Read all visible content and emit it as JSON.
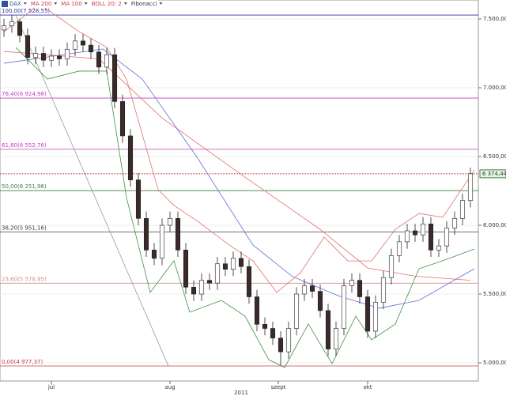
{
  "chart_data": {
    "type": "candlestick",
    "legend": [
      {
        "name": "DAX",
        "color": "#3050a0"
      },
      {
        "name": "MA 200",
        "color": "#d04040"
      },
      {
        "name": "MA 100",
        "color": "#d04040"
      },
      {
        "name": "BOLL 20; 2",
        "color": "#d04040"
      },
      {
        "name": "Fibonacci",
        "color": "#333333"
      }
    ],
    "x": [
      0,
      1,
      2,
      3,
      4,
      5,
      6,
      7,
      8,
      9,
      10,
      11,
      12,
      13,
      14,
      15,
      16,
      17,
      18,
      19,
      20,
      21,
      22,
      23,
      24,
      25,
      26,
      27,
      28,
      29,
      30,
      31,
      32,
      33,
      34,
      35,
      36,
      37,
      38,
      39,
      40,
      41,
      42,
      43,
      44,
      45,
      46,
      47,
      48,
      49,
      50,
      51,
      52,
      53,
      54,
      55,
      56,
      57,
      58,
      59
    ],
    "open": [
      7420,
      7450,
      7480,
      7380,
      7220,
      7250,
      7200,
      7230,
      7210,
      7280,
      7340,
      7310,
      7260,
      7150,
      7240,
      6900,
      6650,
      6330,
      6050,
      5820,
      5760,
      6000,
      6050,
      5820,
      5550,
      5500,
      5600,
      5580,
      5720,
      5680,
      5760,
      5700,
      5480,
      5280,
      5250,
      5180,
      5080,
      5250,
      5500,
      5560,
      5520,
      5380,
      5100,
      5250,
      5560,
      5600,
      5480,
      5230,
      5440,
      5620,
      5780,
      5880,
      5960,
      5930,
      6010,
      5820,
      5850,
      5980,
      6050,
      6180
    ],
    "high": [
      7500,
      7528,
      7500,
      7430,
      7300,
      7300,
      7280,
      7280,
      7330,
      7390,
      7390,
      7360,
      7310,
      7290,
      7290,
      6950,
      6700,
      6380,
      6100,
      5870,
      6050,
      6100,
      6100,
      5870,
      5600,
      5650,
      5650,
      5770,
      5770,
      5810,
      5810,
      5750,
      5530,
      5330,
      5300,
      5230,
      5300,
      5550,
      5610,
      5610,
      5570,
      5430,
      5300,
      5610,
      5650,
      5650,
      5530,
      5490,
      5670,
      5830,
      5930,
      6010,
      6010,
      6060,
      6060,
      5900,
      6030,
      6100,
      6230,
      6420
    ],
    "low": [
      7370,
      7400,
      7330,
      7170,
      7170,
      7150,
      7150,
      7160,
      7160,
      7230,
      7260,
      7210,
      7100,
      7100,
      6850,
      6600,
      6280,
      6000,
      5770,
      5710,
      5710,
      5950,
      5770,
      5500,
      5450,
      5450,
      5530,
      5530,
      5630,
      5630,
      5650,
      5430,
      5230,
      5200,
      5130,
      4980,
      5030,
      5200,
      5450,
      5470,
      5330,
      5050,
      5050,
      5200,
      5510,
      5430,
      5180,
      5180,
      5390,
      5570,
      5730,
      5830,
      5880,
      5880,
      5770,
      5770,
      5800,
      5930,
      6000,
      6130
    ],
    "close": [
      7450,
      7480,
      7380,
      7220,
      7250,
      7200,
      7230,
      7210,
      7280,
      7340,
      7310,
      7260,
      7150,
      7240,
      6900,
      6650,
      6330,
      6050,
      5820,
      5760,
      6000,
      6050,
      5820,
      5550,
      5500,
      5600,
      5580,
      5720,
      5680,
      5760,
      5700,
      5480,
      5280,
      5250,
      5180,
      5080,
      5250,
      5500,
      5560,
      5520,
      5380,
      5100,
      5250,
      5560,
      5600,
      5480,
      5230,
      5440,
      5620,
      5780,
      5880,
      5960,
      5930,
      6010,
      5820,
      5850,
      5980,
      6050,
      6180,
      6374.44
    ],
    "up_color": "#ffffff",
    "down_color": "#3a2a2a",
    "overlays": [
      {
        "name": "MA 200",
        "color": "#e07070",
        "x": [
          0,
          12,
          20,
          30,
          40,
          46,
          52,
          59
        ],
        "values": [
          7264,
          7210,
          6780,
          6370,
          5970,
          5690,
          5630,
          5600
        ]
      },
      {
        "name": "MA 100",
        "color": "#6070d0",
        "x": [
          0,
          12.5,
          17.5,
          24.5,
          31.5,
          36.5,
          42.5,
          47.5,
          52.5,
          59.5
        ],
        "values": [
          7178,
          7282,
          7063,
          6488,
          5856,
          5627,
          5483,
          5397,
          5454,
          5684
        ]
      },
      {
        "name": "BOLL 20; 2",
        "color": "#e07070",
        "x": [
          0,
          4.5,
          9.5,
          13,
          15.5,
          19.5,
          21.5,
          24.5,
          28.5,
          31.5,
          34.5,
          37.5,
          40.5,
          43.5,
          46.5,
          49.5,
          52.5,
          55.5,
          59.5
        ],
        "values": [
          7408,
          7609,
          7408,
          7293,
          7063,
          6259,
          6144,
          6029,
          5856,
          5741,
          5512,
          5655,
          5914,
          5741,
          5741,
          5971,
          6086,
          6058,
          6402
        ]
      },
      {
        "name": "BOLL 20; 2",
        "color": "#409040",
        "x": [
          1.5,
          5.5,
          9.5,
          13,
          15.5,
          18.5,
          21.5,
          23.5,
          27.5,
          30.5,
          33.5,
          35.5,
          38.5,
          41.5,
          44.5,
          46.5,
          49.5,
          52.5,
          55.5,
          59.5
        ],
        "values": [
          7293,
          7063,
          7121,
          7121,
          6201,
          5512,
          5742,
          5368,
          5454,
          5339,
          5023,
          4966,
          5282,
          4994,
          5339,
          5167,
          5282,
          5684,
          5742,
          5828
        ]
      }
    ],
    "fibonacci": [
      {
        "label": "100,00(7 528,55)",
        "value": 7528.55,
        "color": "#3030a0"
      },
      {
        "label": "76,40(6 924,98)",
        "value": 6924.98,
        "color": "#c040c0"
      },
      {
        "label": "61,80(6 552,76)",
        "value": 6552.76,
        "color": "#c040c0"
      },
      {
        "label": "50,00(6 251,96)",
        "value": 6251.96,
        "color": "#408040"
      },
      {
        "label": "38,20(5 951,16)",
        "value": 5951.16,
        "color": "#404040"
      },
      {
        "label": "23,60(5 578,95)",
        "value": 5578.95,
        "color": "#d09090"
      },
      {
        "label": "0,00(4 977,37)",
        "value": 4977.37,
        "color": "#c04040"
      }
    ],
    "last_price": {
      "value": 6374.44,
      "label": "6 374,44",
      "color": "#c03030"
    },
    "xlim": [
      -0.5,
      60
    ],
    "ylim": [
      4868,
      7638
    ],
    "xticks": [
      {
        "value": 6,
        "label": "júl"
      },
      {
        "value": 21,
        "label": "aug"
      },
      {
        "value": 34.7,
        "label": "szept"
      },
      {
        "value": 46,
        "label": "okt"
      }
    ],
    "x_year": "2011",
    "yticks": [
      {
        "value": 7500,
        "label": "7.500,00"
      },
      {
        "value": 7000,
        "label": "7.000,00"
      },
      {
        "value": 6500,
        "label": "6.500,00"
      },
      {
        "value": 6000,
        "label": "6.000,00"
      },
      {
        "value": 5500,
        "label": "5.500,00"
      },
      {
        "value": 5000,
        "label": "5.000,00"
      }
    ],
    "grid": true
  }
}
